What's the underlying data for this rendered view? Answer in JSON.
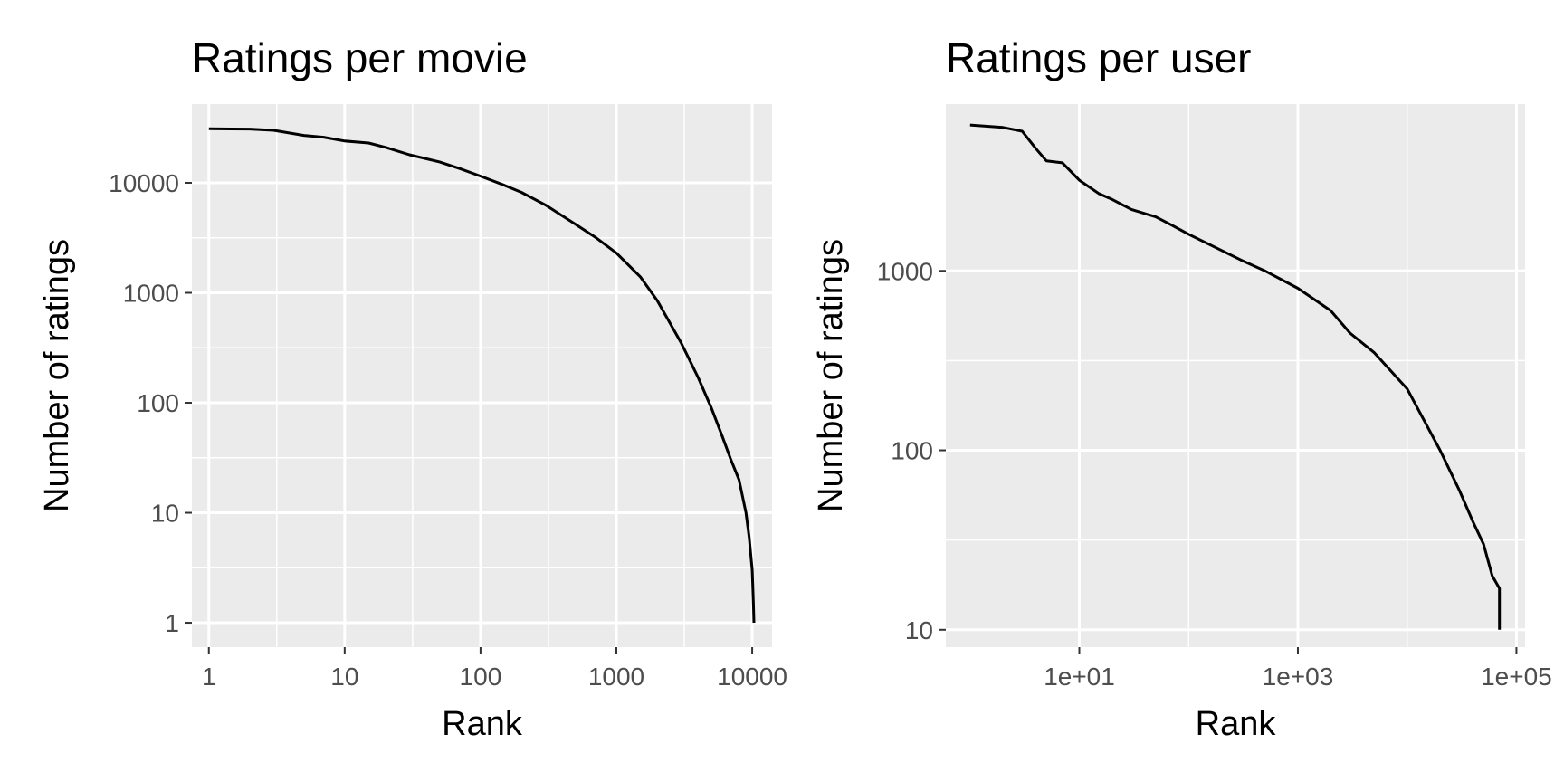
{
  "chart_data": [
    {
      "type": "line",
      "title": "Ratings per movie",
      "xlabel": "Rank",
      "ylabel": "Number of ratings",
      "x_scale": "log10",
      "y_scale": "log10",
      "xlim": [
        0.75,
        14000
      ],
      "ylim": [
        0.6,
        52000
      ],
      "x_ticks": [
        1,
        10,
        100,
        1000,
        10000
      ],
      "x_tick_labels": [
        "1",
        "10",
        "100",
        "1000",
        "10000"
      ],
      "y_ticks": [
        1,
        10,
        100,
        1000,
        10000
      ],
      "y_tick_labels": [
        "1",
        "10",
        "100",
        "1000",
        "10000"
      ],
      "grid": true,
      "colors": {
        "panel": "#ebebeb",
        "grid": "#ffffff",
        "line": "#000000",
        "tick_text": "#4d4d4d"
      },
      "series": [
        {
          "x": [
            1,
            2,
            3,
            5,
            7,
            10,
            15,
            20,
            30,
            50,
            70,
            100,
            150,
            200,
            300,
            500,
            700,
            1000,
            1500,
            2000,
            3000,
            4000,
            5000,
            6000,
            7000,
            8000,
            9000,
            9500,
            10000,
            10200,
            10300
          ],
          "y": [
            31000,
            30800,
            30000,
            27000,
            26000,
            24000,
            23000,
            21000,
            18000,
            15500,
            13500,
            11500,
            9500,
            8200,
            6300,
            4200,
            3200,
            2300,
            1400,
            850,
            350,
            170,
            90,
            50,
            30,
            20,
            10,
            6,
            3,
            1.5,
            1
          ]
        }
      ]
    },
    {
      "type": "line",
      "title": "Ratings per user",
      "xlabel": "Rank",
      "ylabel": "Number of ratings",
      "x_scale": "log10",
      "y_scale": "log10",
      "xlim": [
        0.6,
        120000
      ],
      "ylim": [
        8,
        8500
      ],
      "x_ticks": [
        10,
        1000,
        100000
      ],
      "x_tick_labels": [
        "1e+01",
        "1e+03",
        "1e+05"
      ],
      "y_ticks": [
        10,
        100,
        1000
      ],
      "y_tick_labels": [
        "10",
        "100",
        "1000"
      ],
      "grid": true,
      "colors": {
        "panel": "#ebebeb",
        "grid": "#ffffff",
        "line": "#000000",
        "tick_text": "#4d4d4d"
      },
      "series": [
        {
          "x": [
            1,
            2,
            3,
            4,
            5,
            7,
            10,
            15,
            20,
            30,
            50,
            70,
            100,
            200,
            300,
            500,
            1000,
            2000,
            3000,
            5000,
            10000,
            20000,
            30000,
            40000,
            50000,
            60000,
            70000,
            70000
          ],
          "y": [
            6500,
            6300,
            6000,
            4800,
            4100,
            4000,
            3200,
            2700,
            2500,
            2200,
            2000,
            1800,
            1600,
            1300,
            1150,
            1000,
            800,
            600,
            450,
            350,
            220,
            100,
            60,
            40,
            30,
            20,
            17,
            10
          ]
        }
      ]
    }
  ]
}
